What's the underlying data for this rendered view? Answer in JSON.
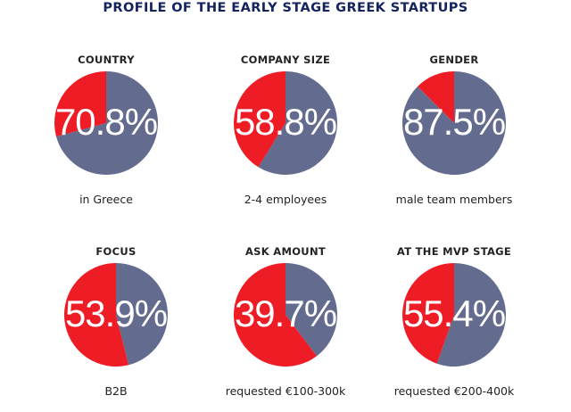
{
  "title": "PROFILE OF THE EARLY STAGE GREEK STARTUPS",
  "colors": {
    "primary": "#636b8f",
    "accent": "#ee1c25",
    "title": "#13235e"
  },
  "chart_data": [
    {
      "type": "pie",
      "title": "COUNTRY",
      "label": "70.8%",
      "caption": "in Greece",
      "slices": [
        {
          "value": 70.8,
          "color": "#636b8f"
        },
        {
          "value": 29.2,
          "color": "#ee1c25"
        }
      ]
    },
    {
      "type": "pie",
      "title": "COMPANY SIZE",
      "label": "58.8%",
      "caption": "2-4 employees",
      "slices": [
        {
          "value": 58.8,
          "color": "#636b8f"
        },
        {
          "value": 41.2,
          "color": "#ee1c25"
        }
      ]
    },
    {
      "type": "pie",
      "title": "GENDER",
      "label": "87.5%",
      "caption": "male team members",
      "slices": [
        {
          "value": 87.5,
          "color": "#636b8f"
        },
        {
          "value": 12.5,
          "color": "#ee1c25"
        }
      ]
    },
    {
      "type": "pie",
      "title": "FOCUS",
      "label": "53.9%",
      "caption": "B2B",
      "slices": [
        {
          "value": 46.1,
          "color": "#636b8f"
        },
        {
          "value": 53.9,
          "color": "#ee1c25"
        }
      ]
    },
    {
      "type": "pie",
      "title": "ASK AMOUNT",
      "label": "39.7%",
      "caption": "requested €100-300k",
      "slices": [
        {
          "value": 39.7,
          "color": "#636b8f"
        },
        {
          "value": 60.3,
          "color": "#ee1c25"
        }
      ]
    },
    {
      "type": "pie",
      "title": "AT THE MVP STAGE",
      "label": "55.4%",
      "caption": "requested €200-400k",
      "slices": [
        {
          "value": 55.4,
          "color": "#636b8f"
        },
        {
          "value": 44.6,
          "color": "#ee1c25"
        }
      ]
    }
  ]
}
